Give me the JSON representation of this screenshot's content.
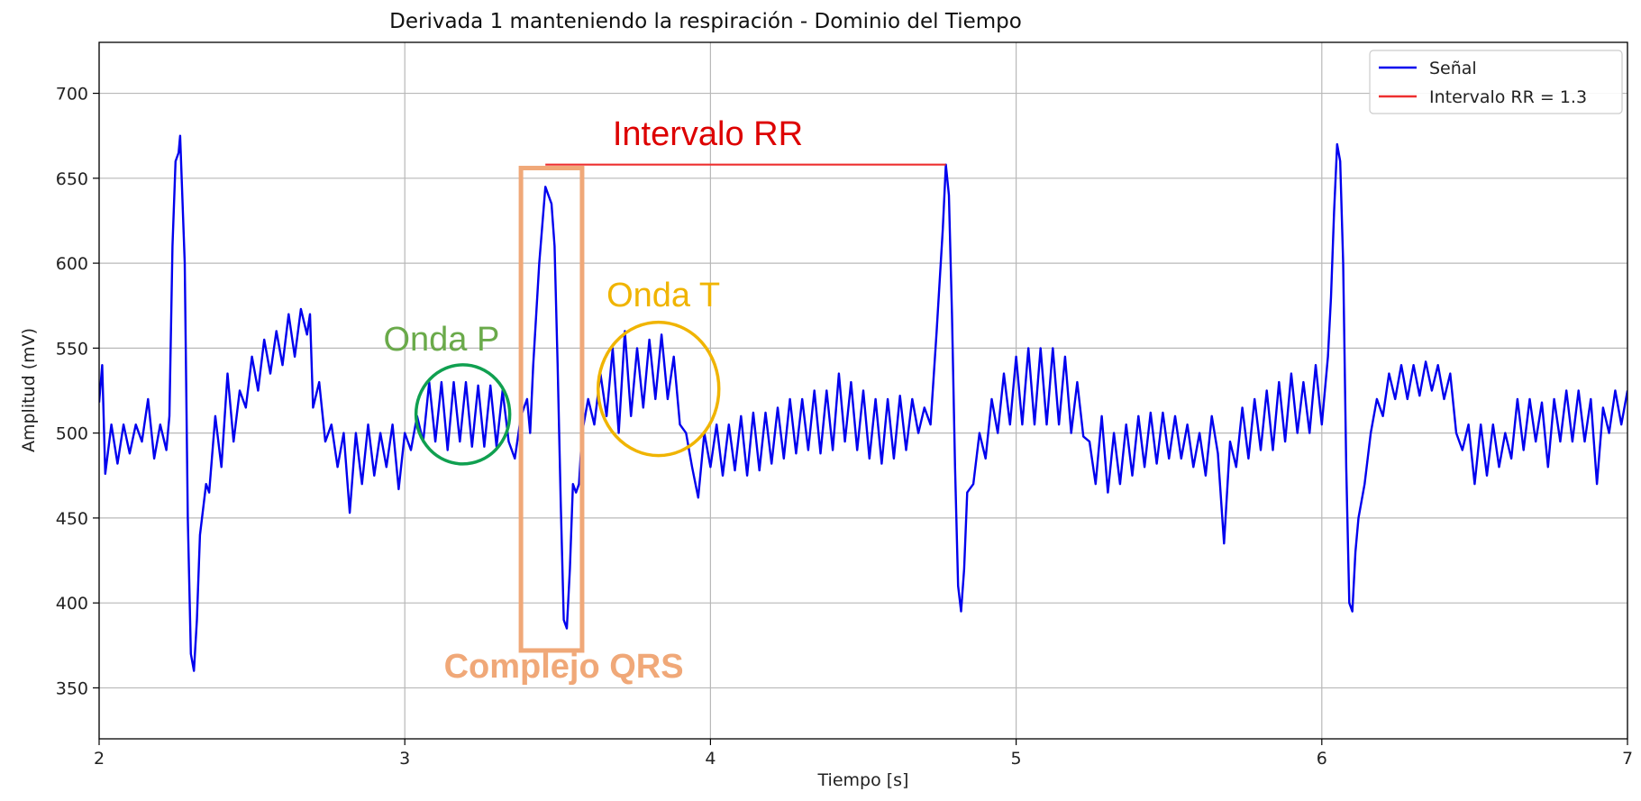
{
  "chart_data": {
    "type": "line",
    "title": "Derivada 1 manteniendo la respiración - Dominio del Tiempo",
    "xlabel": "Tiempo [s]",
    "ylabel": "Amplitud (mV)",
    "xlim": [
      2,
      7
    ],
    "ylim": [
      320,
      730
    ],
    "x_ticks": [
      2,
      3,
      4,
      5,
      6,
      7
    ],
    "y_ticks": [
      350,
      400,
      450,
      500,
      550,
      600,
      650,
      700
    ],
    "grid": true,
    "legend_position": "top-right",
    "legend": [
      {
        "label": "Señal",
        "color": "#0000ee"
      },
      {
        "label": "Intervalo RR = 1.3",
        "color": "#ee3030"
      }
    ],
    "series": [
      {
        "name": "Señal",
        "color": "#0000ee",
        "points": [
          [
            2.0,
            518
          ],
          [
            2.01,
            540
          ],
          [
            2.02,
            476
          ],
          [
            2.04,
            505
          ],
          [
            2.06,
            482
          ],
          [
            2.08,
            505
          ],
          [
            2.1,
            488
          ],
          [
            2.12,
            505
          ],
          [
            2.14,
            495
          ],
          [
            2.16,
            520
          ],
          [
            2.18,
            485
          ],
          [
            2.2,
            505
          ],
          [
            2.22,
            490
          ],
          [
            2.23,
            510
          ],
          [
            2.24,
            610
          ],
          [
            2.25,
            660
          ],
          [
            2.26,
            665
          ],
          [
            2.265,
            675
          ],
          [
            2.27,
            650
          ],
          [
            2.28,
            600
          ],
          [
            2.29,
            450
          ],
          [
            2.3,
            370
          ],
          [
            2.31,
            360
          ],
          [
            2.32,
            390
          ],
          [
            2.33,
            440
          ],
          [
            2.35,
            470
          ],
          [
            2.36,
            465
          ],
          [
            2.38,
            510
          ],
          [
            2.4,
            480
          ],
          [
            2.42,
            535
          ],
          [
            2.44,
            495
          ],
          [
            2.46,
            525
          ],
          [
            2.48,
            515
          ],
          [
            2.5,
            545
          ],
          [
            2.52,
            525
          ],
          [
            2.54,
            555
          ],
          [
            2.56,
            535
          ],
          [
            2.58,
            560
          ],
          [
            2.6,
            540
          ],
          [
            2.62,
            570
          ],
          [
            2.64,
            545
          ],
          [
            2.66,
            573
          ],
          [
            2.68,
            558
          ],
          [
            2.69,
            570
          ],
          [
            2.7,
            515
          ],
          [
            2.72,
            530
          ],
          [
            2.74,
            495
          ],
          [
            2.76,
            505
          ],
          [
            2.78,
            480
          ],
          [
            2.8,
            500
          ],
          [
            2.82,
            453
          ],
          [
            2.84,
            500
          ],
          [
            2.86,
            470
          ],
          [
            2.88,
            505
          ],
          [
            2.9,
            475
          ],
          [
            2.92,
            500
          ],
          [
            2.94,
            480
          ],
          [
            2.96,
            505
          ],
          [
            2.98,
            467
          ],
          [
            3.0,
            500
          ],
          [
            3.02,
            490
          ],
          [
            3.04,
            510
          ],
          [
            3.06,
            495
          ],
          [
            3.08,
            530
          ],
          [
            3.1,
            495
          ],
          [
            3.12,
            530
          ],
          [
            3.14,
            490
          ],
          [
            3.16,
            530
          ],
          [
            3.18,
            495
          ],
          [
            3.2,
            530
          ],
          [
            3.22,
            492
          ],
          [
            3.24,
            528
          ],
          [
            3.26,
            492
          ],
          [
            3.28,
            528
          ],
          [
            3.3,
            492
          ],
          [
            3.32,
            525
          ],
          [
            3.34,
            495
          ],
          [
            3.36,
            485
          ],
          [
            3.38,
            510
          ],
          [
            3.4,
            520
          ],
          [
            3.41,
            500
          ],
          [
            3.42,
            540
          ],
          [
            3.44,
            600
          ],
          [
            3.46,
            645
          ],
          [
            3.48,
            635
          ],
          [
            3.49,
            610
          ],
          [
            3.5,
            540
          ],
          [
            3.51,
            460
          ],
          [
            3.52,
            390
          ],
          [
            3.53,
            385
          ],
          [
            3.54,
            420
          ],
          [
            3.55,
            470
          ],
          [
            3.56,
            465
          ],
          [
            3.57,
            470
          ],
          [
            3.58,
            500
          ],
          [
            3.6,
            520
          ],
          [
            3.62,
            505
          ],
          [
            3.64,
            535
          ],
          [
            3.66,
            510
          ],
          [
            3.68,
            550
          ],
          [
            3.7,
            500
          ],
          [
            3.72,
            560
          ],
          [
            3.74,
            510
          ],
          [
            3.76,
            550
          ],
          [
            3.78,
            515
          ],
          [
            3.8,
            555
          ],
          [
            3.82,
            520
          ],
          [
            3.84,
            558
          ],
          [
            3.86,
            520
          ],
          [
            3.88,
            545
          ],
          [
            3.9,
            505
          ],
          [
            3.92,
            500
          ],
          [
            3.94,
            480
          ],
          [
            3.96,
            462
          ],
          [
            3.98,
            500
          ],
          [
            4.0,
            480
          ],
          [
            4.02,
            505
          ],
          [
            4.04,
            475
          ],
          [
            4.06,
            505
          ],
          [
            4.08,
            478
          ],
          [
            4.1,
            510
          ],
          [
            4.12,
            475
          ],
          [
            4.14,
            512
          ],
          [
            4.16,
            478
          ],
          [
            4.18,
            512
          ],
          [
            4.2,
            482
          ],
          [
            4.22,
            515
          ],
          [
            4.24,
            485
          ],
          [
            4.26,
            520
          ],
          [
            4.28,
            488
          ],
          [
            4.3,
            520
          ],
          [
            4.32,
            490
          ],
          [
            4.34,
            525
          ],
          [
            4.36,
            488
          ],
          [
            4.38,
            525
          ],
          [
            4.4,
            490
          ],
          [
            4.42,
            535
          ],
          [
            4.44,
            495
          ],
          [
            4.46,
            530
          ],
          [
            4.48,
            490
          ],
          [
            4.5,
            525
          ],
          [
            4.52,
            485
          ],
          [
            4.54,
            520
          ],
          [
            4.56,
            482
          ],
          [
            4.58,
            520
          ],
          [
            4.6,
            485
          ],
          [
            4.62,
            522
          ],
          [
            4.64,
            490
          ],
          [
            4.66,
            520
          ],
          [
            4.68,
            500
          ],
          [
            4.7,
            515
          ],
          [
            4.72,
            505
          ],
          [
            4.74,
            560
          ],
          [
            4.76,
            620
          ],
          [
            4.77,
            658
          ],
          [
            4.78,
            640
          ],
          [
            4.79,
            570
          ],
          [
            4.8,
            480
          ],
          [
            4.81,
            410
          ],
          [
            4.82,
            395
          ],
          [
            4.83,
            420
          ],
          [
            4.84,
            465
          ],
          [
            4.86,
            470
          ],
          [
            4.88,
            500
          ],
          [
            4.9,
            485
          ],
          [
            4.92,
            520
          ],
          [
            4.94,
            500
          ],
          [
            4.96,
            535
          ],
          [
            4.98,
            505
          ],
          [
            5.0,
            545
          ],
          [
            5.02,
            505
          ],
          [
            5.04,
            550
          ],
          [
            5.06,
            505
          ],
          [
            5.08,
            550
          ],
          [
            5.1,
            505
          ],
          [
            5.12,
            550
          ],
          [
            5.14,
            505
          ],
          [
            5.16,
            545
          ],
          [
            5.18,
            500
          ],
          [
            5.2,
            530
          ],
          [
            5.22,
            498
          ],
          [
            5.24,
            495
          ],
          [
            5.26,
            470
          ],
          [
            5.28,
            510
          ],
          [
            5.3,
            465
          ],
          [
            5.32,
            500
          ],
          [
            5.34,
            470
          ],
          [
            5.36,
            505
          ],
          [
            5.38,
            475
          ],
          [
            5.4,
            510
          ],
          [
            5.42,
            480
          ],
          [
            5.44,
            512
          ],
          [
            5.46,
            482
          ],
          [
            5.48,
            512
          ],
          [
            5.5,
            485
          ],
          [
            5.52,
            510
          ],
          [
            5.54,
            485
          ],
          [
            5.56,
            505
          ],
          [
            5.58,
            480
          ],
          [
            5.6,
            500
          ],
          [
            5.62,
            475
          ],
          [
            5.64,
            510
          ],
          [
            5.66,
            488
          ],
          [
            5.68,
            435
          ],
          [
            5.7,
            495
          ],
          [
            5.72,
            480
          ],
          [
            5.74,
            515
          ],
          [
            5.76,
            485
          ],
          [
            5.78,
            520
          ],
          [
            5.8,
            490
          ],
          [
            5.82,
            525
          ],
          [
            5.84,
            490
          ],
          [
            5.86,
            530
          ],
          [
            5.88,
            495
          ],
          [
            5.9,
            535
          ],
          [
            5.92,
            500
          ],
          [
            5.94,
            530
          ],
          [
            5.96,
            500
          ],
          [
            5.98,
            540
          ],
          [
            6.0,
            505
          ],
          [
            6.02,
            545
          ],
          [
            6.03,
            580
          ],
          [
            6.04,
            630
          ],
          [
            6.05,
            670
          ],
          [
            6.06,
            660
          ],
          [
            6.07,
            600
          ],
          [
            6.08,
            480
          ],
          [
            6.09,
            400
          ],
          [
            6.1,
            395
          ],
          [
            6.11,
            430
          ],
          [
            6.12,
            450
          ],
          [
            6.14,
            470
          ],
          [
            6.16,
            500
          ],
          [
            6.18,
            520
          ],
          [
            6.2,
            510
          ],
          [
            6.22,
            535
          ],
          [
            6.24,
            520
          ],
          [
            6.26,
            540
          ],
          [
            6.28,
            520
          ],
          [
            6.3,
            540
          ],
          [
            6.32,
            522
          ],
          [
            6.34,
            542
          ],
          [
            6.36,
            525
          ],
          [
            6.38,
            540
          ],
          [
            6.4,
            520
          ],
          [
            6.42,
            535
          ],
          [
            6.44,
            500
          ],
          [
            6.46,
            490
          ],
          [
            6.48,
            505
          ],
          [
            6.5,
            470
          ],
          [
            6.52,
            505
          ],
          [
            6.54,
            475
          ],
          [
            6.56,
            505
          ],
          [
            6.58,
            480
          ],
          [
            6.6,
            500
          ],
          [
            6.62,
            485
          ],
          [
            6.64,
            520
          ],
          [
            6.66,
            490
          ],
          [
            6.68,
            520
          ],
          [
            6.7,
            495
          ],
          [
            6.72,
            518
          ],
          [
            6.74,
            480
          ],
          [
            6.76,
            520
          ],
          [
            6.78,
            495
          ],
          [
            6.8,
            525
          ],
          [
            6.82,
            495
          ],
          [
            6.84,
            525
          ],
          [
            6.86,
            495
          ],
          [
            6.88,
            520
          ],
          [
            6.9,
            470
          ],
          [
            6.92,
            515
          ],
          [
            6.94,
            500
          ],
          [
            6.96,
            525
          ],
          [
            6.98,
            505
          ],
          [
            7.0,
            525
          ]
        ]
      },
      {
        "name": "Intervalo RR = 1.3",
        "color": "#ee3030",
        "points": [
          [
            3.46,
            658
          ],
          [
            4.77,
            658
          ]
        ]
      }
    ],
    "annotations": [
      {
        "text": "Intervalo RR",
        "color": "#dd0000",
        "shape": "none"
      },
      {
        "text": "Onda P",
        "color": "#6aaa4a",
        "shape": "circle",
        "stroke": "#10a050"
      },
      {
        "text": "Onda T",
        "color": "#f0b400",
        "shape": "circle",
        "stroke": "#f0b400"
      },
      {
        "text": "Complejo QRS",
        "color": "#f0a878",
        "shape": "rectangle",
        "stroke": "#f0a878"
      }
    ]
  }
}
